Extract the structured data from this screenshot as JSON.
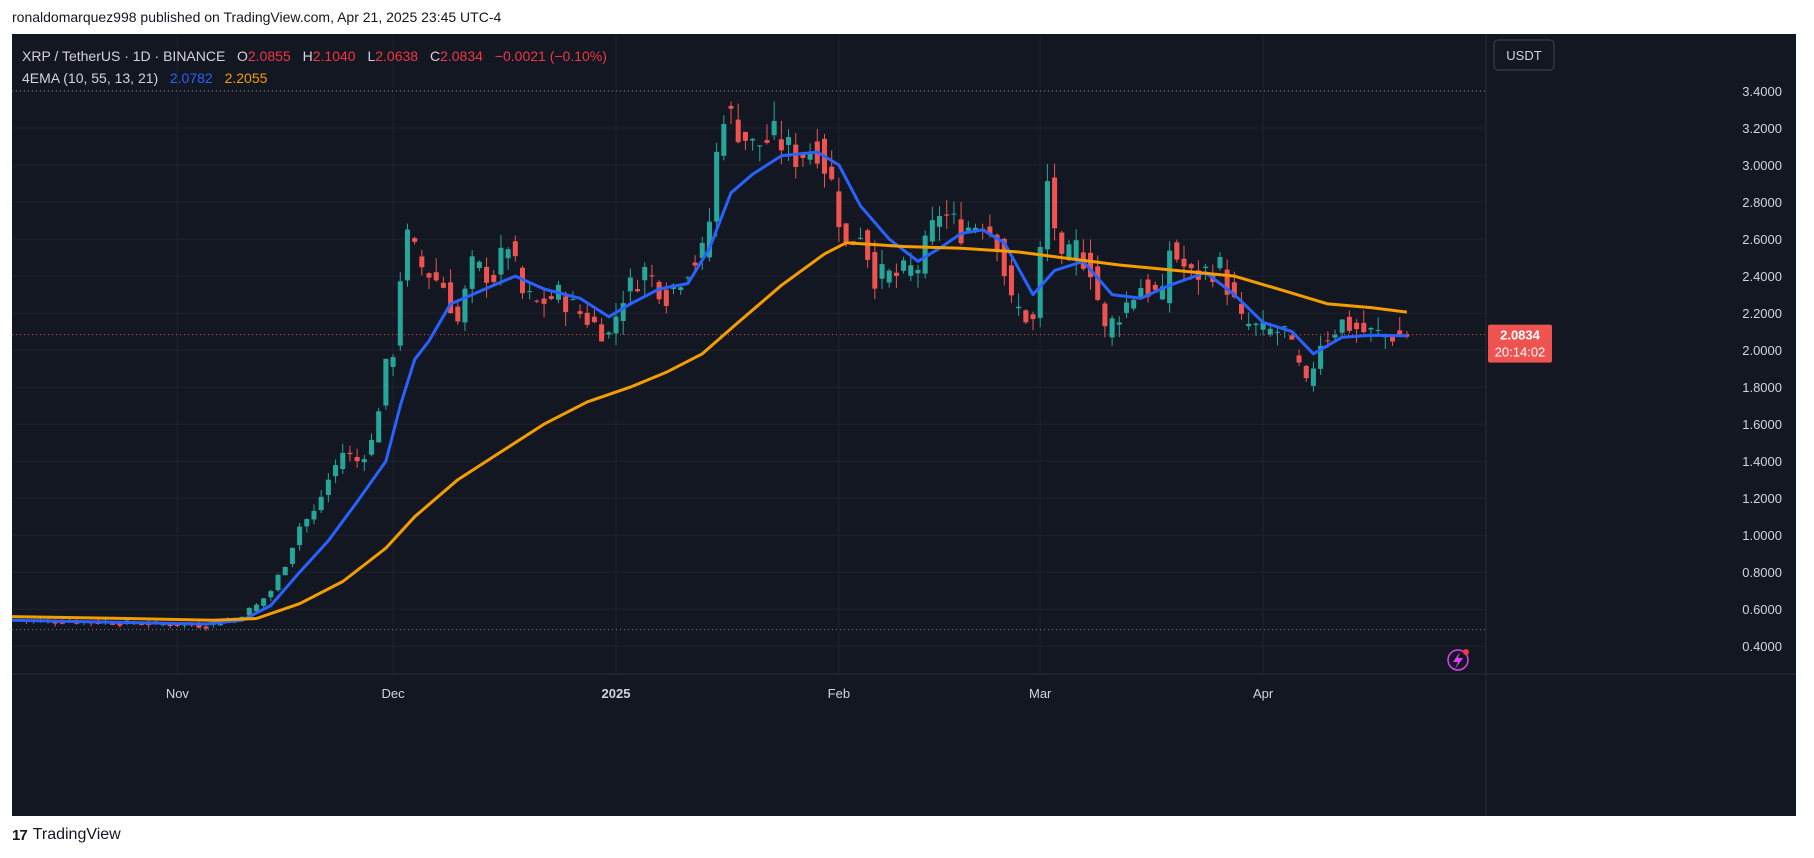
{
  "caption": "ronaldomarquez998 published on TradingView.com, Apr 21, 2025 23:45 UTC-4",
  "brand": "TradingView",
  "brand_logo": "17",
  "currency_button": "USDT",
  "colors": {
    "background": "#131722",
    "up": "#26a69a",
    "down": "#ef5350",
    "ema_fast": "#2962ff",
    "ema_slow": "#f59d00",
    "text": "#d1d4dc",
    "grid": "#1e222d"
  },
  "legend": {
    "symbol": "XRP / TetherUS · 1D · BINANCE",
    "o_label": "O",
    "o_val": "2.0855",
    "h_label": "H",
    "h_val": "2.1040",
    "l_label": "L",
    "l_val": "2.0638",
    "c_label": "C",
    "c_val": "2.0834",
    "change": "−0.0021 (−0.10%)",
    "ema_label": "4EMA (10, 55, 13, 21)",
    "ema_fast_val": "2.0782",
    "ema_slow_val": "2.2055"
  },
  "price_tag": {
    "price": "2.0834",
    "countdown": "20:14:02"
  },
  "alert_icon": "lightning-icon",
  "chart_data": {
    "type": "line",
    "title": "XRP / TetherUS · 1D · BINANCE",
    "y_scale": "linear",
    "ylim": [
      0.25,
      3.6
    ],
    "y_ticks": [
      "0.4000",
      "0.6000",
      "0.8000",
      "1.0000",
      "1.2000",
      "1.4000",
      "1.6000",
      "1.8000",
      "2.0000",
      "2.2000",
      "2.4000",
      "2.6000",
      "2.8000",
      "3.0000",
      "3.2000",
      "3.4000"
    ],
    "x_tick_labels": [
      {
        "date": "2024-11-01",
        "label": "Nov"
      },
      {
        "date": "2024-12-01",
        "label": "Dec"
      },
      {
        "date": "2025-01-01",
        "label": "2025"
      },
      {
        "date": "2025-02-01",
        "label": "Feb"
      },
      {
        "date": "2025-03-01",
        "label": "Mar"
      },
      {
        "date": "2025-04-01",
        "label": "Apr"
      }
    ],
    "xlim": [
      "2024-10-09",
      "2025-05-02"
    ],
    "reference_lines": [
      3.4,
      0.49
    ],
    "current_price_line": 2.0834,
    "price_path": [
      [
        "2024-10-09",
        0.54
      ],
      [
        "2024-10-20",
        0.53
      ],
      [
        "2024-10-30",
        0.52
      ],
      [
        "2024-11-05",
        0.51
      ],
      [
        "2024-11-09",
        0.55
      ],
      [
        "2024-11-12",
        0.62
      ],
      [
        "2024-11-14",
        0.7
      ],
      [
        "2024-11-16",
        0.85
      ],
      [
        "2024-11-18",
        1.05
      ],
      [
        "2024-11-20",
        1.12
      ],
      [
        "2024-11-22",
        1.3
      ],
      [
        "2024-11-24",
        1.45
      ],
      [
        "2024-11-26",
        1.4
      ],
      [
        "2024-11-28",
        1.5
      ],
      [
        "2024-11-30",
        1.9
      ],
      [
        "2024-12-01",
        2.0
      ],
      [
        "2024-12-02",
        2.4
      ],
      [
        "2024-12-03",
        2.6
      ],
      [
        "2024-12-05",
        2.45
      ],
      [
        "2024-12-08",
        2.35
      ],
      [
        "2024-12-10",
        2.15
      ],
      [
        "2024-12-12",
        2.45
      ],
      [
        "2024-12-15",
        2.4
      ],
      [
        "2024-12-17",
        2.58
      ],
      [
        "2024-12-19",
        2.3
      ],
      [
        "2024-12-21",
        2.25
      ],
      [
        "2024-12-24",
        2.3
      ],
      [
        "2024-12-27",
        2.2
      ],
      [
        "2024-12-31",
        2.08
      ],
      [
        "2025-01-02",
        2.3
      ],
      [
        "2025-01-05",
        2.43
      ],
      [
        "2025-01-08",
        2.3
      ],
      [
        "2025-01-11",
        2.45
      ],
      [
        "2025-01-13",
        2.52
      ],
      [
        "2025-01-14",
        2.7
      ],
      [
        "2025-01-15",
        3.05
      ],
      [
        "2025-01-16",
        3.3
      ],
      [
        "2025-01-18",
        3.2
      ],
      [
        "2025-01-20",
        3.1
      ],
      [
        "2025-01-23",
        3.15
      ],
      [
        "2025-01-26",
        3.05
      ],
      [
        "2025-01-29",
        3.1
      ],
      [
        "2025-01-31",
        2.9
      ],
      [
        "2025-02-02",
        2.55
      ],
      [
        "2025-02-04",
        2.65
      ],
      [
        "2025-02-06",
        2.4
      ],
      [
        "2025-02-09",
        2.4
      ],
      [
        "2025-02-12",
        2.45
      ],
      [
        "2025-02-15",
        2.75
      ],
      [
        "2025-02-18",
        2.65
      ],
      [
        "2025-02-21",
        2.7
      ],
      [
        "2025-02-23",
        2.6
      ],
      [
        "2025-02-25",
        2.25
      ],
      [
        "2025-02-28",
        2.15
      ],
      [
        "2025-03-02",
        2.9
      ],
      [
        "2025-03-04",
        2.45
      ],
      [
        "2025-03-06",
        2.55
      ],
      [
        "2025-03-08",
        2.45
      ],
      [
        "2025-03-10",
        2.1
      ],
      [
        "2025-03-12",
        2.2
      ],
      [
        "2025-03-15",
        2.35
      ],
      [
        "2025-03-18",
        2.28
      ],
      [
        "2025-03-19",
        2.55
      ],
      [
        "2025-03-22",
        2.4
      ],
      [
        "2025-03-26",
        2.45
      ],
      [
        "2025-03-29",
        2.15
      ],
      [
        "2025-04-01",
        2.1
      ],
      [
        "2025-04-04",
        2.1
      ],
      [
        "2025-04-06",
        1.9
      ],
      [
        "2025-04-07",
        1.8
      ],
      [
        "2025-04-09",
        2.05
      ],
      [
        "2025-04-12",
        2.15
      ],
      [
        "2025-04-15",
        2.1
      ],
      [
        "2025-04-18",
        2.08
      ],
      [
        "2025-04-21",
        2.0834
      ]
    ],
    "series": [
      {
        "name": "EMA 10",
        "color": "#2962ff",
        "points": [
          [
            "2024-10-09",
            0.54
          ],
          [
            "2024-11-05",
            0.52
          ],
          [
            "2024-11-10",
            0.54
          ],
          [
            "2024-11-14",
            0.62
          ],
          [
            "2024-11-18",
            0.8
          ],
          [
            "2024-11-22",
            0.97
          ],
          [
            "2024-11-26",
            1.18
          ],
          [
            "2024-11-30",
            1.4
          ],
          [
            "2024-12-02",
            1.7
          ],
          [
            "2024-12-04",
            1.95
          ],
          [
            "2024-12-06",
            2.05
          ],
          [
            "2024-12-09",
            2.25
          ],
          [
            "2024-12-12",
            2.3
          ],
          [
            "2024-12-15",
            2.35
          ],
          [
            "2024-12-18",
            2.4
          ],
          [
            "2024-12-22",
            2.33
          ],
          [
            "2024-12-27",
            2.28
          ],
          [
            "2024-12-31",
            2.18
          ],
          [
            "2025-01-03",
            2.25
          ],
          [
            "2025-01-07",
            2.33
          ],
          [
            "2025-01-11",
            2.36
          ],
          [
            "2025-01-14",
            2.55
          ],
          [
            "2025-01-17",
            2.85
          ],
          [
            "2025-01-20",
            2.95
          ],
          [
            "2025-01-24",
            3.05
          ],
          [
            "2025-01-29",
            3.07
          ],
          [
            "2025-02-01",
            3.0
          ],
          [
            "2025-02-04",
            2.78
          ],
          [
            "2025-02-08",
            2.6
          ],
          [
            "2025-02-12",
            2.48
          ],
          [
            "2025-02-15",
            2.55
          ],
          [
            "2025-02-18",
            2.63
          ],
          [
            "2025-02-21",
            2.65
          ],
          [
            "2025-02-24",
            2.58
          ],
          [
            "2025-02-28",
            2.3
          ],
          [
            "2025-03-03",
            2.43
          ],
          [
            "2025-03-07",
            2.48
          ],
          [
            "2025-03-11",
            2.3
          ],
          [
            "2025-03-15",
            2.28
          ],
          [
            "2025-03-19",
            2.35
          ],
          [
            "2025-03-24",
            2.42
          ],
          [
            "2025-03-28",
            2.3
          ],
          [
            "2025-04-01",
            2.15
          ],
          [
            "2025-04-05",
            2.1
          ],
          [
            "2025-04-08",
            1.98
          ],
          [
            "2025-04-12",
            2.07
          ],
          [
            "2025-04-16",
            2.08
          ],
          [
            "2025-04-21",
            2.078
          ]
        ]
      },
      {
        "name": "EMA 55",
        "color": "#f59d00",
        "points": [
          [
            "2024-10-09",
            0.56
          ],
          [
            "2024-10-25",
            0.55
          ],
          [
            "2024-11-06",
            0.54
          ],
          [
            "2024-11-12",
            0.55
          ],
          [
            "2024-11-18",
            0.63
          ],
          [
            "2024-11-24",
            0.75
          ],
          [
            "2024-11-30",
            0.93
          ],
          [
            "2024-12-04",
            1.1
          ],
          [
            "2024-12-10",
            1.3
          ],
          [
            "2024-12-16",
            1.45
          ],
          [
            "2024-12-22",
            1.6
          ],
          [
            "2024-12-28",
            1.72
          ],
          [
            "2025-01-03",
            1.8
          ],
          [
            "2025-01-08",
            1.88
          ],
          [
            "2025-01-13",
            1.98
          ],
          [
            "2025-01-18",
            2.15
          ],
          [
            "2025-01-24",
            2.35
          ],
          [
            "2025-01-30",
            2.52
          ],
          [
            "2025-02-02",
            2.58
          ],
          [
            "2025-02-10",
            2.56
          ],
          [
            "2025-02-18",
            2.55
          ],
          [
            "2025-02-26",
            2.53
          ],
          [
            "2025-03-04",
            2.5
          ],
          [
            "2025-03-12",
            2.46
          ],
          [
            "2025-03-20",
            2.43
          ],
          [
            "2025-03-28",
            2.4
          ],
          [
            "2025-04-04",
            2.32
          ],
          [
            "2025-04-10",
            2.25
          ],
          [
            "2025-04-16",
            2.23
          ],
          [
            "2025-04-21",
            2.2055
          ]
        ]
      }
    ]
  }
}
